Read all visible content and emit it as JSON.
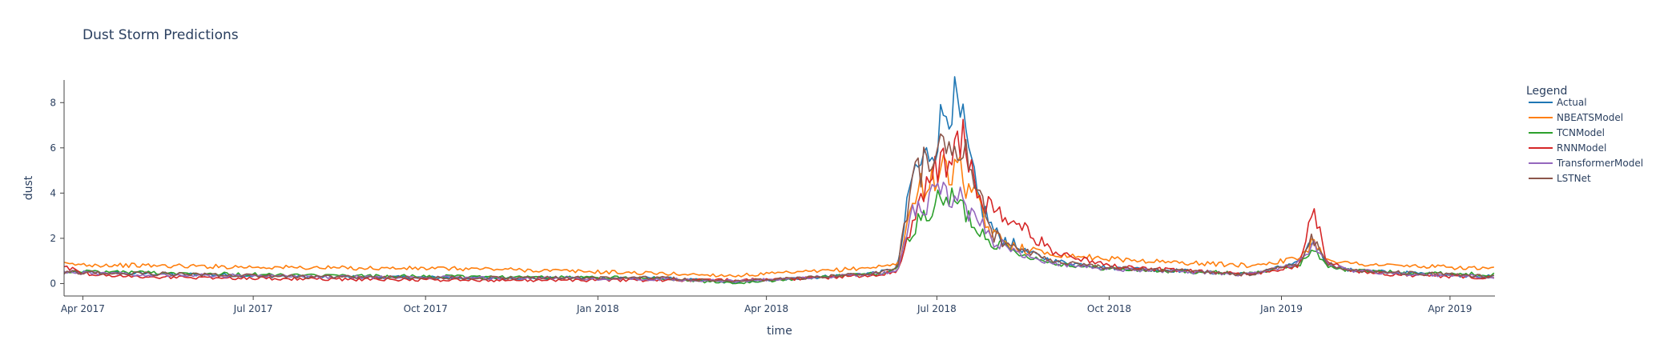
{
  "chart_data": {
    "type": "line",
    "title": "Dust Storm Predictions",
    "xlabel": "time",
    "ylabel": "dust",
    "x_range": [
      "2017-03-22",
      "2019-04-25"
    ],
    "ylim": [
      -0.55,
      9
    ],
    "x_ticks": [
      {
        "date": "2017-04-01",
        "label": "Apr 2017"
      },
      {
        "date": "2017-07-01",
        "label": "Jul 2017"
      },
      {
        "date": "2017-10-01",
        "label": "Oct 2017"
      },
      {
        "date": "2018-01-01",
        "label": "Jan 2018"
      },
      {
        "date": "2018-04-01",
        "label": "Apr 2018"
      },
      {
        "date": "2018-07-01",
        "label": "Jul 2018"
      },
      {
        "date": "2018-10-01",
        "label": "Oct 2018"
      },
      {
        "date": "2019-01-01",
        "label": "Jan 2019"
      },
      {
        "date": "2019-04-01",
        "label": "Apr 2019"
      }
    ],
    "y_ticks": [
      0,
      2,
      4,
      6,
      8
    ],
    "grid": false,
    "legend": {
      "title": "Legend",
      "placement": "right"
    },
    "series": [
      {
        "name": "Actual",
        "color": "#1f77b4",
        "x": [
          "2017-03-22",
          "2017-05-01",
          "2017-08-01",
          "2017-11-01",
          "2018-02-01",
          "2018-03-15",
          "2018-05-01",
          "2018-06-01",
          "2018-06-10",
          "2018-06-18",
          "2018-06-25",
          "2018-07-01",
          "2018-07-08",
          "2018-07-15",
          "2018-07-22",
          "2018-08-01",
          "2018-08-15",
          "2018-09-01",
          "2018-10-01",
          "2018-11-01",
          "2018-12-15",
          "2019-01-10",
          "2019-01-18",
          "2019-01-25",
          "2019-02-05",
          "2019-03-01",
          "2019-04-25"
        ],
        "y": [
          0.5,
          0.45,
          0.3,
          0.25,
          0.25,
          0.05,
          0.3,
          0.5,
          0.7,
          4.8,
          5.5,
          6.5,
          8.4,
          6.8,
          4.0,
          2.2,
          1.5,
          1.0,
          0.7,
          0.6,
          0.4,
          0.9,
          2.0,
          0.9,
          0.6,
          0.5,
          0.3
        ]
      },
      {
        "name": "NBEATSModel",
        "color": "#ff7f0e",
        "x": [
          "2017-03-22",
          "2017-05-01",
          "2017-08-01",
          "2017-11-01",
          "2018-02-01",
          "2018-03-15",
          "2018-05-01",
          "2018-06-01",
          "2018-06-10",
          "2018-06-18",
          "2018-06-25",
          "2018-07-01",
          "2018-07-08",
          "2018-07-15",
          "2018-07-22",
          "2018-08-01",
          "2018-08-15",
          "2018-09-01",
          "2018-10-01",
          "2018-11-01",
          "2018-12-15",
          "2019-01-10",
          "2019-01-18",
          "2019-01-25",
          "2019-02-05",
          "2019-03-01",
          "2019-04-25"
        ],
        "y": [
          0.85,
          0.8,
          0.7,
          0.65,
          0.45,
          0.35,
          0.55,
          0.75,
          0.85,
          3.5,
          4.6,
          4.8,
          5.0,
          4.8,
          3.5,
          2.0,
          1.6,
          1.3,
          1.1,
          0.95,
          0.8,
          1.1,
          1.9,
          1.1,
          0.9,
          0.8,
          0.65
        ]
      },
      {
        "name": "TCNModel",
        "color": "#2ca02c",
        "x": [
          "2017-03-22",
          "2017-05-01",
          "2017-08-01",
          "2017-11-01",
          "2018-02-01",
          "2018-03-15",
          "2018-05-01",
          "2018-06-01",
          "2018-06-10",
          "2018-06-18",
          "2018-06-25",
          "2018-07-01",
          "2018-07-08",
          "2018-07-15",
          "2018-07-22",
          "2018-08-01",
          "2018-08-15",
          "2018-09-01",
          "2018-10-01",
          "2018-11-01",
          "2018-12-15",
          "2019-01-10",
          "2019-01-18",
          "2019-01-25",
          "2019-02-05",
          "2019-03-01",
          "2019-04-25"
        ],
        "y": [
          0.55,
          0.5,
          0.35,
          0.3,
          0.25,
          0.0,
          0.3,
          0.45,
          0.6,
          2.5,
          3.0,
          3.5,
          3.8,
          3.3,
          2.5,
          1.8,
          1.3,
          0.9,
          0.65,
          0.55,
          0.45,
          0.8,
          1.5,
          0.8,
          0.6,
          0.5,
          0.4
        ]
      },
      {
        "name": "RNNModel",
        "color": "#d62728",
        "x": [
          "2017-03-22",
          "2017-04-05",
          "2017-05-01",
          "2017-08-01",
          "2017-11-01",
          "2018-02-01",
          "2018-03-15",
          "2018-05-01",
          "2018-06-01",
          "2018-06-10",
          "2018-06-18",
          "2018-06-25",
          "2018-07-01",
          "2018-07-08",
          "2018-07-15",
          "2018-07-22",
          "2018-08-01",
          "2018-08-15",
          "2018-09-01",
          "2018-10-01",
          "2018-11-01",
          "2018-12-15",
          "2019-01-10",
          "2019-01-18",
          "2019-01-25",
          "2019-02-05",
          "2019-03-01",
          "2019-04-25"
        ],
        "y": [
          0.75,
          0.4,
          0.3,
          0.2,
          0.15,
          0.15,
          0.15,
          0.25,
          0.4,
          0.55,
          2.5,
          4.5,
          5.0,
          5.6,
          6.2,
          4.2,
          3.0,
          2.5,
          1.4,
          0.8,
          0.6,
          0.4,
          0.8,
          3.5,
          1.0,
          0.6,
          0.4,
          0.25
        ]
      },
      {
        "name": "TransformerModel",
        "color": "#9467bd",
        "x": [
          "2017-03-22",
          "2017-05-01",
          "2017-08-01",
          "2017-11-01",
          "2018-02-01",
          "2018-03-15",
          "2018-05-01",
          "2018-06-01",
          "2018-06-10",
          "2018-06-18",
          "2018-06-25",
          "2018-07-01",
          "2018-07-08",
          "2018-07-15",
          "2018-07-22",
          "2018-08-01",
          "2018-08-15",
          "2018-09-01",
          "2018-10-01",
          "2018-11-01",
          "2018-12-15",
          "2019-01-10",
          "2019-01-18",
          "2019-01-25",
          "2019-02-05",
          "2019-03-01",
          "2019-04-25"
        ],
        "y": [
          0.5,
          0.4,
          0.3,
          0.25,
          0.2,
          0.1,
          0.3,
          0.45,
          0.6,
          3.0,
          3.6,
          3.9,
          4.0,
          3.6,
          3.0,
          1.8,
          1.3,
          0.9,
          0.65,
          0.55,
          0.4,
          0.9,
          1.8,
          0.9,
          0.6,
          0.45,
          0.3
        ]
      },
      {
        "name": "LSTNet",
        "color": "#8c564b",
        "x": [
          "2017-03-22",
          "2017-05-01",
          "2017-08-01",
          "2017-11-01",
          "2018-02-01",
          "2018-03-15",
          "2018-05-01",
          "2018-06-01",
          "2018-06-10",
          "2018-06-18",
          "2018-06-25",
          "2018-07-01",
          "2018-07-08",
          "2018-07-15",
          "2018-07-22",
          "2018-08-01",
          "2018-08-15",
          "2018-09-01",
          "2018-10-01",
          "2018-11-01",
          "2018-12-15",
          "2019-01-10",
          "2019-01-18",
          "2019-01-25",
          "2019-02-05",
          "2019-03-01",
          "2019-04-25"
        ],
        "y": [
          0.5,
          0.45,
          0.3,
          0.25,
          0.25,
          0.1,
          0.3,
          0.5,
          0.7,
          4.5,
          5.5,
          6.0,
          6.5,
          6.3,
          4.0,
          2.1,
          1.5,
          1.0,
          0.7,
          0.6,
          0.4,
          0.9,
          2.0,
          0.9,
          0.6,
          0.5,
          0.3
        ]
      }
    ]
  }
}
